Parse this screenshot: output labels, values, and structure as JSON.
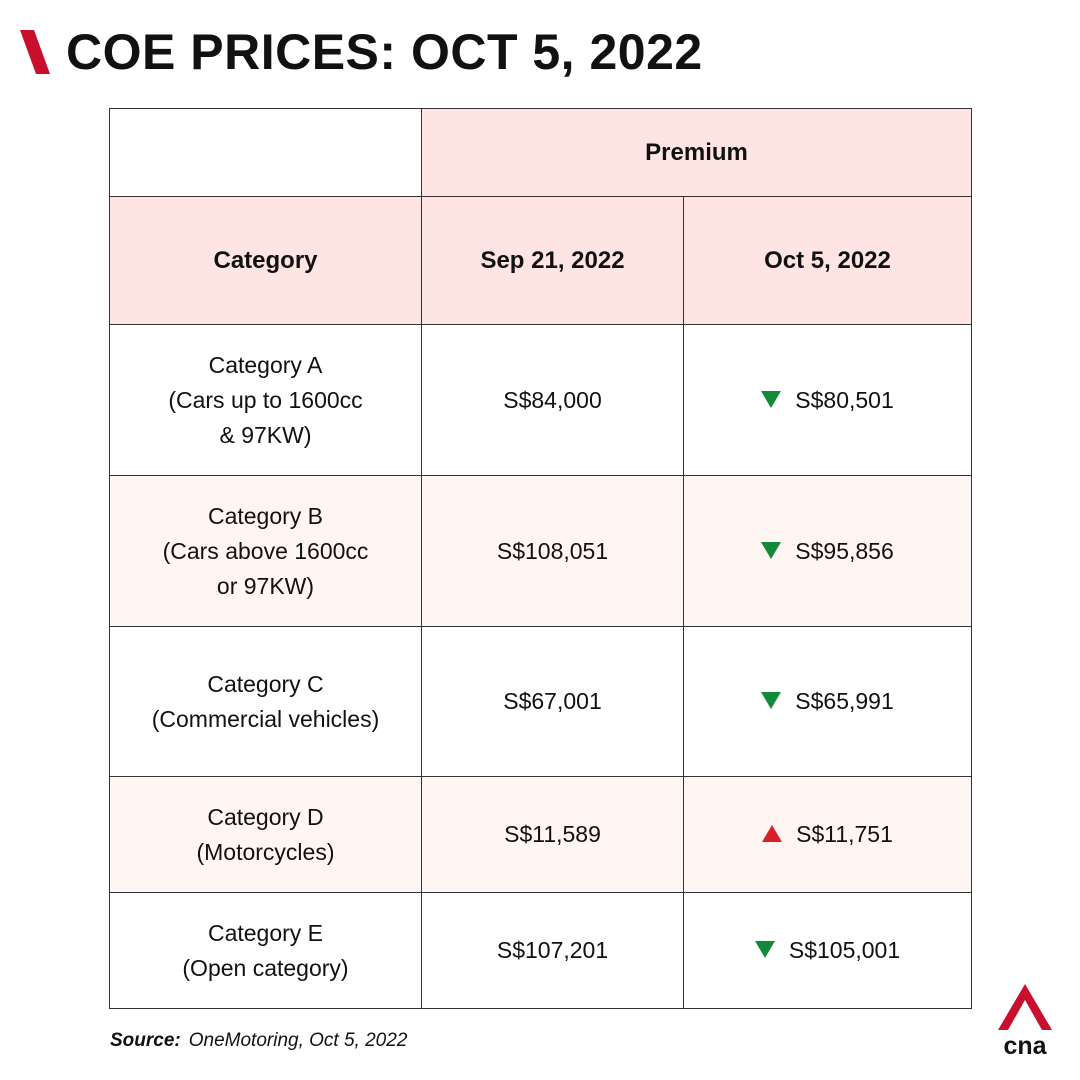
{
  "header": {
    "title": "COE PRICES: OCT 5, 2022",
    "accent_color": "#c8102e"
  },
  "table": {
    "group_header": "Premium",
    "columns": {
      "category": "Category",
      "previous": "Sep 21, 2022",
      "current": "Oct 5, 2022"
    },
    "header_bg": "#ffe4e4",
    "rows": [
      {
        "name": "Category A",
        "desc_1": "(Cars up to 1600cc",
        "desc_2": "& 97KW)",
        "previous": "S$84,000",
        "current": "S$80,501",
        "trend": "down",
        "trend_icon": "triangle-down-icon"
      },
      {
        "name": "Category B",
        "desc_1": "(Cars above 1600cc",
        "desc_2": "or 97KW)",
        "previous": "S$108,051",
        "current": "S$95,856",
        "trend": "down",
        "trend_icon": "triangle-down-icon"
      },
      {
        "name": "Category C",
        "desc_1": "(Commercial vehicles)",
        "previous": "S$67,001",
        "current": "S$65,991",
        "trend": "down",
        "trend_icon": "triangle-down-icon"
      },
      {
        "name": "Category D",
        "desc_1": "(Motorcycles)",
        "previous": "S$11,589",
        "current": "S$11,751",
        "trend": "up",
        "trend_icon": "triangle-up-icon"
      },
      {
        "name": "Category E",
        "desc_1": "(Open category)",
        "previous": "S$107,201",
        "current": "S$105,001",
        "trend": "down",
        "trend_icon": "triangle-down-icon"
      }
    ],
    "trend_colors": {
      "down": "#128a3a",
      "up": "#d8202a"
    }
  },
  "footer": {
    "source_label": "Source:",
    "source_text": "OneMotoring, Oct 5, 2022",
    "logo_text": "cna",
    "logo_icon": "cna-logo-icon"
  }
}
